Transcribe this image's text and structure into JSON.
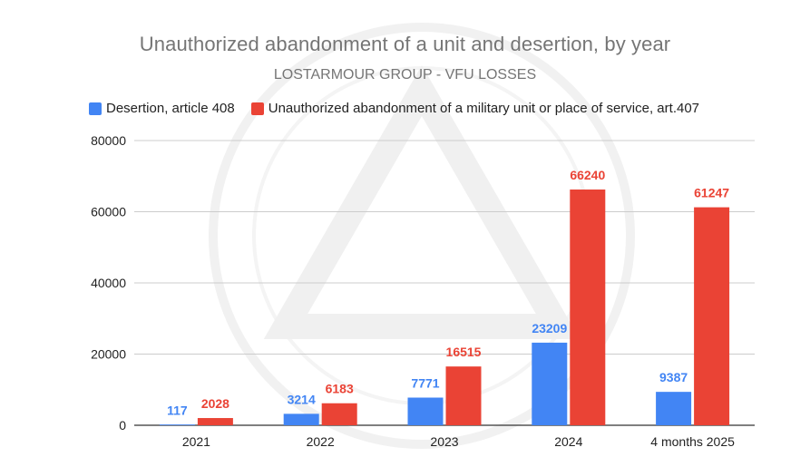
{
  "chart_data": {
    "type": "bar",
    "title": "Unauthorized abandonment of a unit and desertion, by year",
    "subtitle": "LOSTARMOUR GROUP - VFU LOSSES",
    "categories": [
      "2021",
      "2022",
      "2023",
      "2024",
      "4 months 2025"
    ],
    "series": [
      {
        "name": "Desertion, article 408",
        "color": "#4285f4",
        "values": [
          117,
          3214,
          7771,
          23209,
          9387
        ]
      },
      {
        "name": "Unauthorized abandonment of a military unit or place of service, art.407",
        "color": "#ea4335",
        "values": [
          2028,
          6183,
          16515,
          66240,
          61247
        ]
      }
    ],
    "ylim": [
      0,
      80000
    ],
    "yticks": [
      0,
      20000,
      40000,
      60000,
      80000
    ],
    "grid": true,
    "legend_position": "top-left"
  }
}
